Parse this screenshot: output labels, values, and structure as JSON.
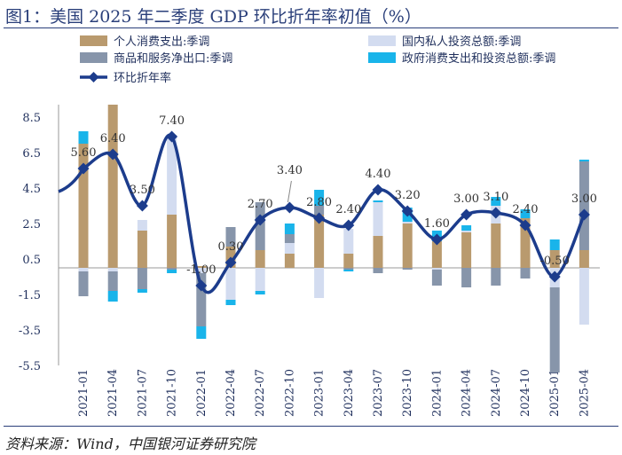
{
  "page_title": "图1：美国 2025 年二季度 GDP 环比折年率初值（%）",
  "source_note": "资料来源：Wind，中国银河证券研究院",
  "colors": {
    "consumption": "#b99a6e",
    "investment": "#d3dcf0",
    "net_exports": "#8795aa",
    "government": "#19b4ea",
    "growth_line": "#1c3c8c"
  },
  "chart_data": {
    "type": "bar",
    "stacked": true,
    "categories": [
      "2021-01",
      "2021-04",
      "2021-07",
      "2021-10",
      "2022-01",
      "2022-04",
      "2022-07",
      "2022-10",
      "2023-01",
      "2023-04",
      "2023-07",
      "2023-10",
      "2024-01",
      "2024-04",
      "2024-07",
      "2024-10",
      "2025-01",
      "2025-04"
    ],
    "yticks": [
      "8.5",
      "6.5",
      "4.5",
      "2.5",
      "0.5",
      "-1.5",
      "-3.5",
      "-5.5"
    ],
    "ylim": [
      -5.5,
      9.0
    ],
    "legend_position": "top",
    "series": [
      {
        "name": "个人消费支出:季调",
        "key": "consumption",
        "values": [
          7.0,
          9.2,
          2.1,
          3.0,
          0.1,
          1.2,
          1.0,
          0.8,
          3.0,
          0.8,
          1.8,
          2.5,
          1.5,
          2.0,
          2.5,
          2.8,
          1.0,
          1.0
        ]
      },
      {
        "name": "国内私人投资总额:季调",
        "key": "investment",
        "values": [
          -0.2,
          -0.2,
          0.6,
          4.5,
          -0.3,
          -1.8,
          -1.3,
          0.6,
          -1.7,
          1.4,
          1.9,
          0.1,
          -0.1,
          0.1,
          1.0,
          0.0,
          -1.1,
          -3.2
        ]
      },
      {
        "name": "商品和服务净出口:季调",
        "key": "net_exports",
        "values": [
          -1.4,
          -1.1,
          -1.2,
          -0.1,
          -3.0,
          1.1,
          2.7,
          0.5,
          0.5,
          -0.1,
          -0.3,
          -0.1,
          -0.9,
          -1.1,
          -1.0,
          -0.6,
          -4.8,
          5.0
        ]
      },
      {
        "name": "政府消费支出和投资总额:季调",
        "key": "government",
        "values": [
          0.7,
          -0.6,
          -0.2,
          -0.2,
          -0.7,
          -0.3,
          -0.2,
          0.6,
          0.9,
          -0.1,
          0.1,
          0.8,
          0.6,
          0.3,
          0.5,
          0.5,
          0.6,
          0.1
        ]
      },
      {
        "name": "环比折年率",
        "key": "growth_line",
        "type": "line",
        "values": [
          5.6,
          6.4,
          3.5,
          7.4,
          -1.0,
          0.3,
          2.7,
          3.4,
          2.8,
          2.4,
          4.4,
          3.2,
          1.6,
          3.0,
          3.1,
          2.4,
          -0.5,
          3.0
        ],
        "labels": [
          "5.60",
          "6.40",
          "3.50",
          "7.40",
          "-1.00",
          "0.30",
          "2.70",
          "3.40",
          "2.80",
          "2.40",
          "4.40",
          "3.20",
          "1.60",
          "3.00",
          "3.10",
          "2.40",
          "-0.50",
          "3.00"
        ]
      }
    ]
  }
}
